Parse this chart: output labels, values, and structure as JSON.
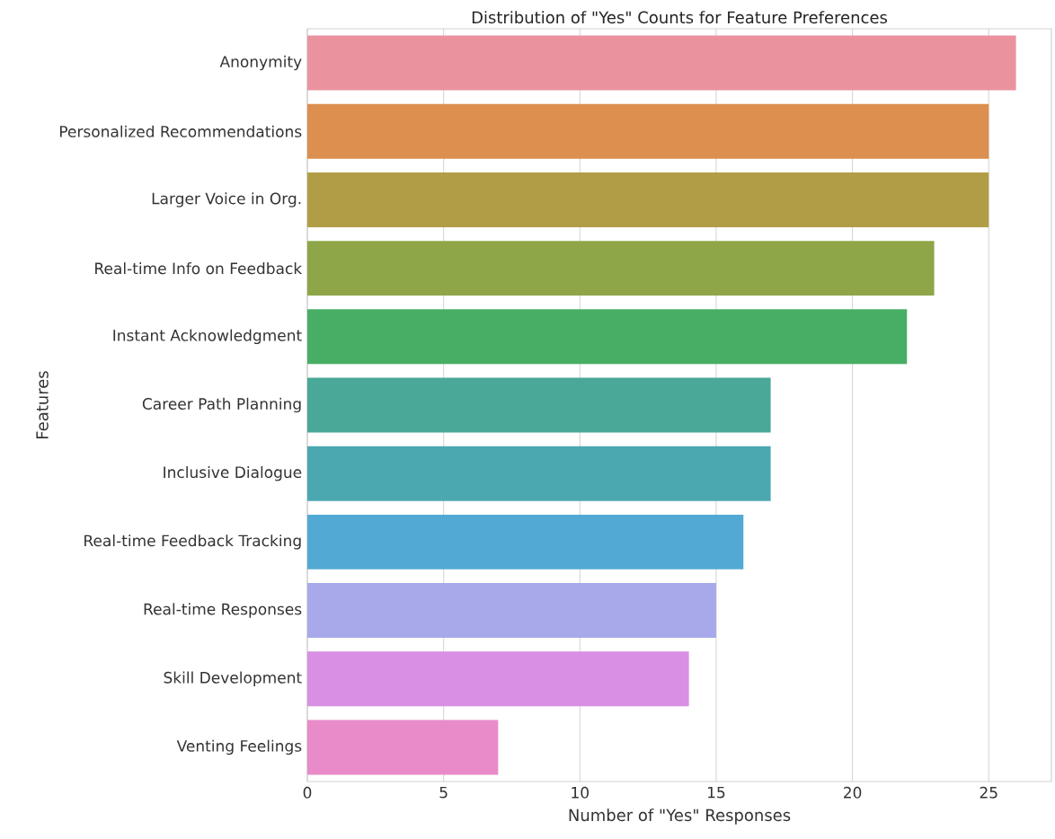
{
  "chart_data": {
    "type": "bar",
    "orientation": "horizontal",
    "title": "Distribution of \"Yes\" Counts for Feature Preferences",
    "xlabel": "Number of \"Yes\" Responses",
    "ylabel": "Features",
    "categories": [
      "Anonymity",
      "Personalized Recommendations",
      "Larger Voice in Org.",
      "Real-time Info on Feedback",
      "Instant Acknowledgment",
      "Career Path Planning",
      "Inclusive Dialogue",
      "Real-time Feedback Tracking",
      "Real-time Responses",
      "Skill Development",
      "Venting Feelings"
    ],
    "values": [
      26,
      25,
      25,
      23,
      22,
      17,
      17,
      16,
      15,
      14,
      7
    ],
    "colors": [
      "#ea939f",
      "#dc8f4e",
      "#b29d47",
      "#8ea647",
      "#48ae66",
      "#49a897",
      "#4ba8b1",
      "#52aad4",
      "#a8a9ea",
      "#d98fe4",
      "#e88bc8"
    ],
    "xlim": [
      0,
      27.3
    ],
    "xticks": [
      0,
      5,
      10,
      15,
      20,
      25
    ],
    "grid": "x"
  }
}
